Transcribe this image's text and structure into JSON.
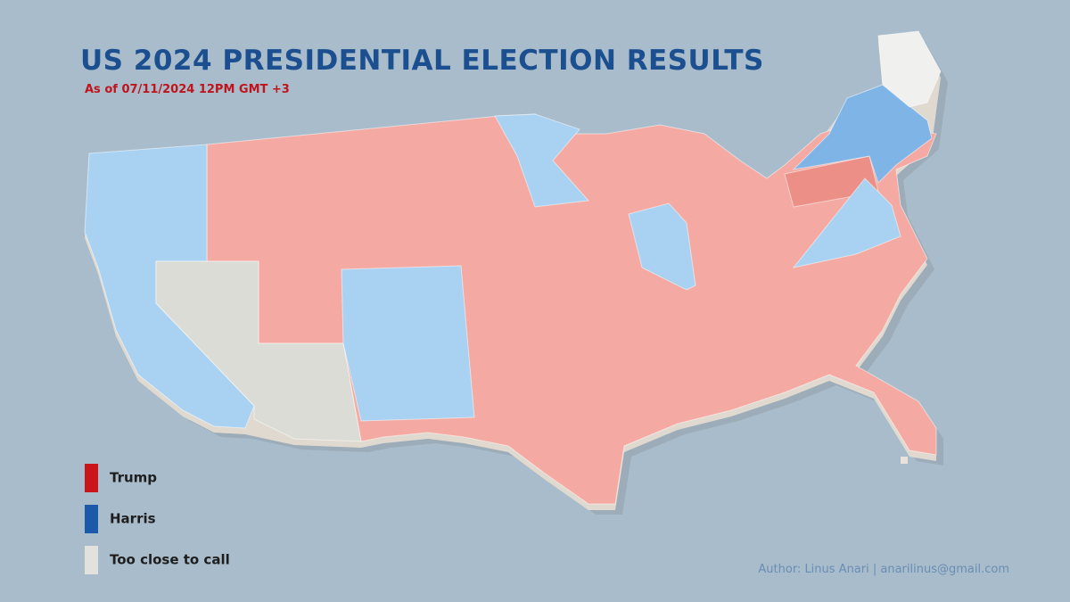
{
  "header": {
    "title": "US 2024 PRESIDENTIAL ELECTION RESULTS",
    "subtitle": "As of 07/11/2024 12PM GMT +3"
  },
  "legend": [
    {
      "label": "Trump",
      "color": "#c8141a"
    },
    {
      "label": "Harris",
      "color": "#1a5aa8"
    },
    {
      "label": "Too close to call",
      "color": "#e2e1dc"
    }
  ],
  "credit": "Author: Linus Anari | anarilinus@gmail.com"
}
